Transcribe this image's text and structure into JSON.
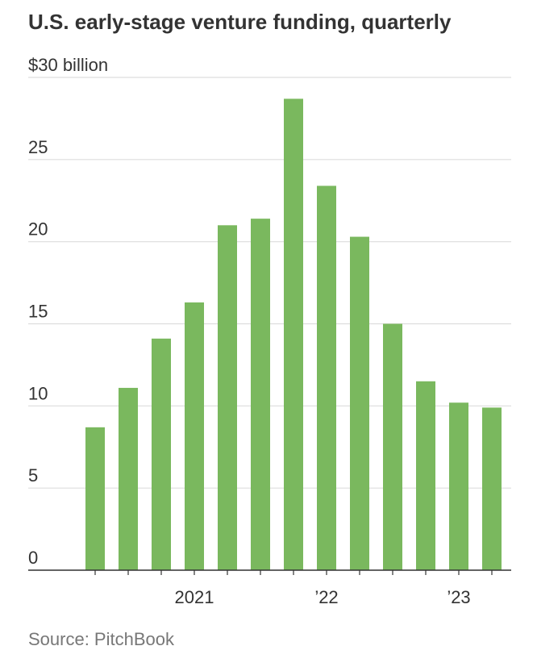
{
  "chart_data": {
    "type": "bar",
    "title": "U.S. early-stage venture funding, quarterly",
    "source": "Source: PitchBook",
    "categories": [
      null,
      null,
      null,
      "2021",
      null,
      null,
      null,
      "’22",
      null,
      null,
      null,
      "’23",
      null
    ],
    "values": [
      8.7,
      11.1,
      14.1,
      16.3,
      21.0,
      21.4,
      28.7,
      23.4,
      20.3,
      15.0,
      11.5,
      10.2,
      9.9
    ],
    "color": "#7ab85e",
    "ylim": [
      0,
      30
    ],
    "yticks": [
      0,
      5,
      10,
      15,
      20,
      25,
      {
        "value": 30,
        "label": "$30 billion"
      }
    ],
    "grid": true
  }
}
